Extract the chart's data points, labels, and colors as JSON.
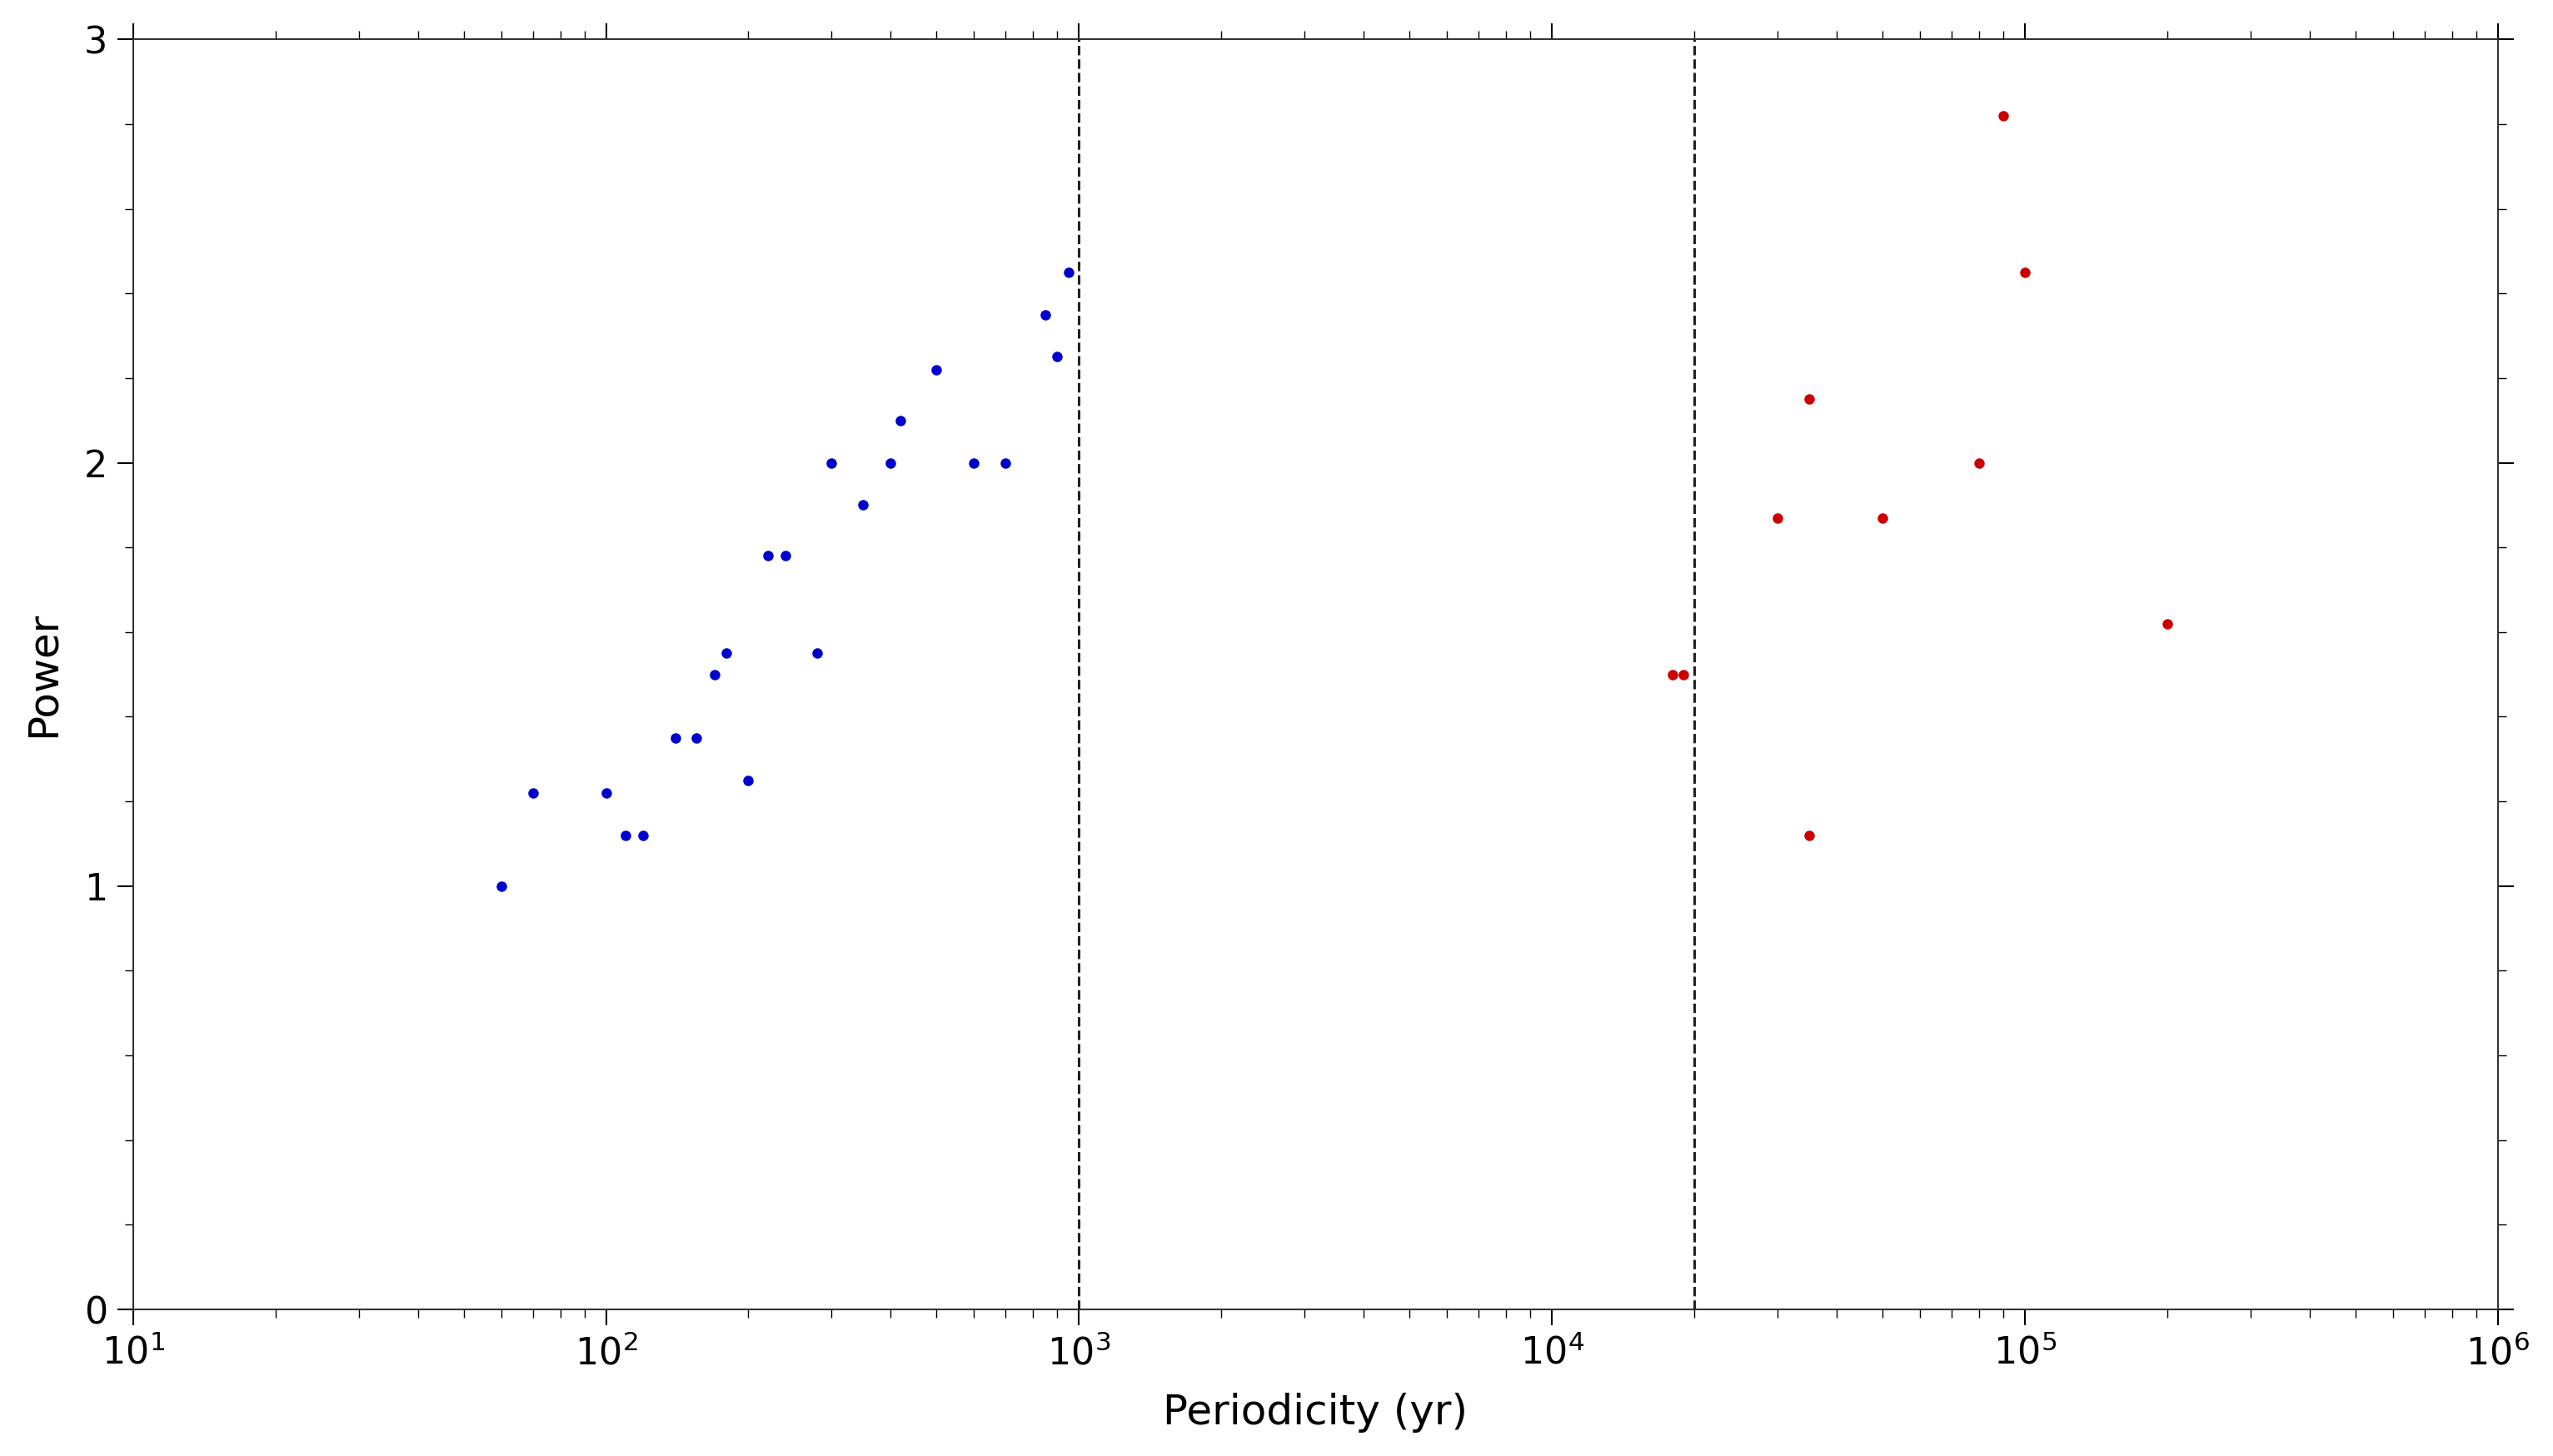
{
  "blue_points": [
    [
      60,
      1.0
    ],
    [
      70,
      1.22
    ],
    [
      100,
      1.22
    ],
    [
      110,
      1.12
    ],
    [
      120,
      1.12
    ],
    [
      140,
      1.35
    ],
    [
      155,
      1.35
    ],
    [
      170,
      1.5
    ],
    [
      180,
      1.55
    ],
    [
      200,
      1.25
    ],
    [
      220,
      1.78
    ],
    [
      240,
      1.78
    ],
    [
      280,
      1.55
    ],
    [
      300,
      2.0
    ],
    [
      350,
      1.9
    ],
    [
      400,
      2.0
    ],
    [
      420,
      2.1
    ],
    [
      500,
      2.22
    ],
    [
      600,
      2.0
    ],
    [
      700,
      2.0
    ],
    [
      850,
      2.35
    ],
    [
      900,
      2.25
    ],
    [
      950,
      2.45
    ]
  ],
  "red_points": [
    [
      18000,
      1.5
    ],
    [
      19000,
      1.5
    ],
    [
      30000,
      1.87
    ],
    [
      35000,
      2.15
    ],
    [
      50000,
      1.87
    ],
    [
      80000,
      2.0
    ],
    [
      90000,
      2.82
    ],
    [
      100000,
      2.45
    ],
    [
      200000,
      1.62
    ],
    [
      35000,
      1.12
    ]
  ],
  "dashed_line_1": 1000,
  "dashed_line_2": 20000,
  "xlim": [
    10,
    1000000
  ],
  "ylim": [
    0,
    3
  ],
  "xlabel": "Periodicity (yr)",
  "ylabel": "Power",
  "yticks": [
    0,
    1,
    2,
    3
  ],
  "blue_color": "#0000cd",
  "red_color": "#cd0000",
  "dashed_color": "#222222",
  "background_color": "#ffffff",
  "marker_size": 9,
  "title": ""
}
